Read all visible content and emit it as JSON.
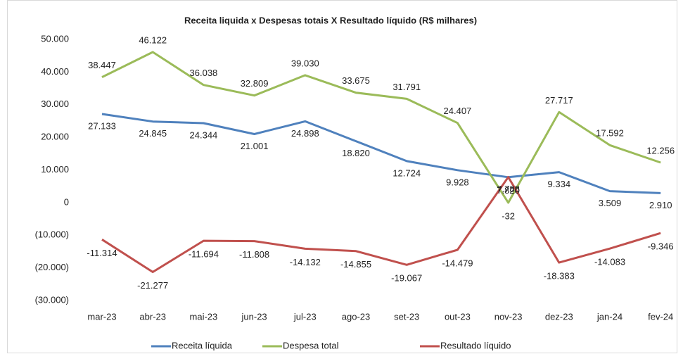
{
  "chart_data": {
    "type": "line",
    "title": "Receita liquida x Despesas totais X Resultado líquido (R$ milhares)",
    "categories": [
      "mar-23",
      "abr-23",
      "mai-23",
      "jun-23",
      "jul-23",
      "ago-23",
      "set-23",
      "out-23",
      "nov-23",
      "dez-23",
      "jan-24",
      "fev-24"
    ],
    "series": [
      {
        "name": "Receita líquida",
        "color": "#4f81bd",
        "values": [
          27133,
          24845,
          24344,
          21001,
          24898,
          18820,
          12724,
          9928,
          7788,
          9334,
          3509,
          2910
        ],
        "value_labels": [
          "27.133",
          "24.845",
          "24.344",
          "21.001",
          "24.898",
          "18.820",
          "12.724",
          "9.928",
          "7.788",
          "9.334",
          "3.509",
          "2.910"
        ]
      },
      {
        "name": "Despesa total",
        "color": "#9bbb59",
        "values": [
          38447,
          46122,
          36038,
          32809,
          39030,
          33675,
          31791,
          24407,
          -32,
          27717,
          17592,
          12256
        ],
        "value_labels": [
          "38.447",
          "46.122",
          "36.038",
          "32.809",
          "39.030",
          "33.675",
          "31.791",
          "24.407",
          "-32",
          "27.717",
          "17.592",
          "12.256"
        ]
      },
      {
        "name": "Resultado líquido",
        "color": "#c0504d",
        "values": [
          -11314,
          -21277,
          -11694,
          -11808,
          -14132,
          -14855,
          -19067,
          -14479,
          7820,
          -18383,
          -14083,
          -9346
        ],
        "value_labels": [
          "-11.314",
          "-21.277",
          "-11.694",
          "-11.808",
          "-14.132",
          "-14.855",
          "-19.067",
          "-14.479",
          "7.820",
          "-18.383",
          "-14.083",
          "-9.346"
        ]
      }
    ],
    "ylim": [
      -30000,
      50000
    ],
    "yticks": [
      {
        "value": 50000,
        "label": "50.000"
      },
      {
        "value": 40000,
        "label": "40.000"
      },
      {
        "value": 30000,
        "label": "30.000"
      },
      {
        "value": 20000,
        "label": "20.000"
      },
      {
        "value": 10000,
        "label": "10.000"
      },
      0,
      {
        "value": -10000,
        "label": "(10.000)"
      },
      {
        "value": -20000,
        "label": "(20.000)"
      },
      {
        "value": -30000,
        "label": "(30.000)"
      }
    ],
    "grid": false,
    "legend": "bottom"
  }
}
